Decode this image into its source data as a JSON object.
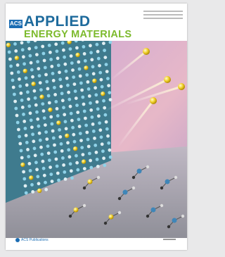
{
  "cover": {
    "logo": "ACS",
    "title_line1": "APPLIED",
    "title_line2": "ENERGY MATERIALS",
    "publisher": "ACS Publications"
  }
}
